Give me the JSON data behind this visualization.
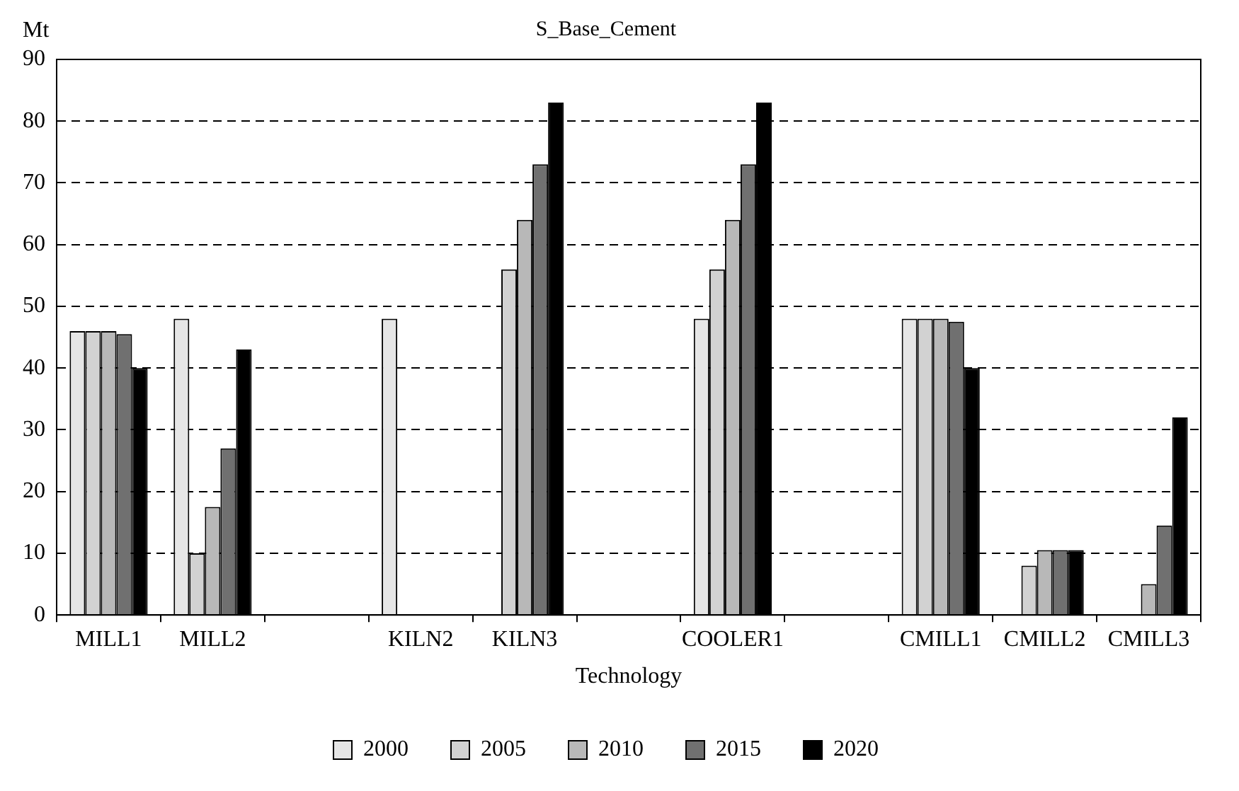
{
  "chart_data": {
    "type": "bar",
    "title": "S_Base_Cement",
    "ylabel": "Mt",
    "xlabel": "Technology",
    "categories": [
      "MILL1",
      "MILL2",
      null,
      "KILN2",
      "KILN3",
      null,
      "COOLER1",
      null,
      "CMILL1",
      "CMILL2",
      "CMILL3"
    ],
    "series": [
      {
        "name": "2000",
        "color": "#e6e6e6",
        "values": [
          46,
          48,
          0,
          48,
          0,
          0,
          48,
          0,
          48,
          0,
          0
        ]
      },
      {
        "name": "2005",
        "color": "#d2d2d2",
        "values": [
          46,
          10,
          0,
          0,
          56,
          0,
          56,
          0,
          48,
          8,
          0
        ]
      },
      {
        "name": "2010",
        "color": "#b8b8b8",
        "values": [
          46,
          17.5,
          0,
          0,
          64,
          0,
          64,
          0,
          48,
          10.5,
          5
        ]
      },
      {
        "name": "2015",
        "color": "#707070",
        "values": [
          45.5,
          27,
          0,
          0,
          73,
          0,
          73,
          0,
          47.5,
          10.5,
          14.5
        ]
      },
      {
        "name": "2020",
        "color": "#000000",
        "values": [
          40,
          43,
          0,
          0,
          83,
          0,
          83,
          0,
          40,
          10.5,
          32
        ]
      }
    ],
    "ylim": [
      0,
      90
    ],
    "yticks": [
      0,
      10,
      20,
      30,
      40,
      50,
      60,
      70,
      80,
      90
    ],
    "grid": "y",
    "legend": "bottom"
  }
}
